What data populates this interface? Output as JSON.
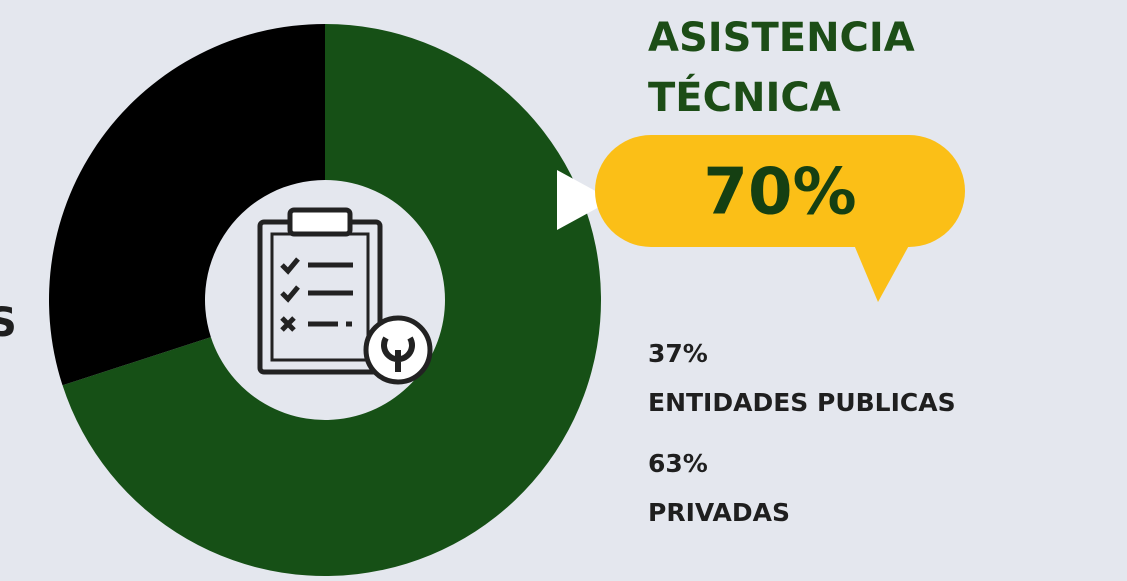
{
  "chart_data": {
    "type": "pie",
    "title": "ASISTENCIA TÉCNICA",
    "values": [
      70,
      30
    ],
    "value_labels": [
      "70%",
      null
    ],
    "colors": [
      "#165016",
      "#000000"
    ],
    "donut": true
  },
  "side_text": "S",
  "notes": [
    {
      "percent": "37%",
      "name": "ENTIDADES PUBLICAS"
    },
    {
      "percent": "63%",
      "name": "PRIVADAS"
    }
  ]
}
